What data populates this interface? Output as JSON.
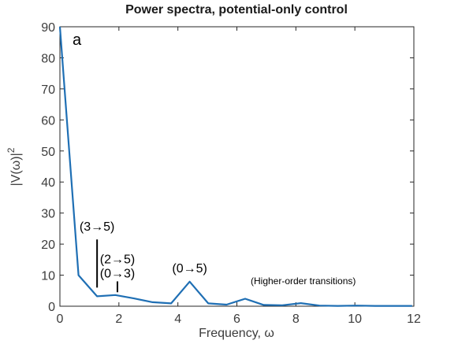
{
  "chart_data": {
    "type": "line",
    "title": "Power spectra, potential-only control",
    "panel_label": "a",
    "xlabel": "Frequency, ω",
    "ylabel_base": "|V(ω)|",
    "ylabel_sup": "2",
    "xlim": [
      0,
      12
    ],
    "ylim": [
      0,
      90
    ],
    "xticks": [
      0,
      2,
      4,
      6,
      8,
      10,
      12
    ],
    "yticks": [
      0,
      10,
      20,
      30,
      40,
      50,
      60,
      70,
      80,
      90
    ],
    "grid": false,
    "line_color": "#1f6fb4",
    "series": [
      {
        "x": [
          0,
          0.63,
          1.26,
          1.88,
          2.51,
          3.14,
          3.77,
          4.4,
          5.03,
          5.65,
          6.28,
          6.91,
          7.54,
          8.17,
          8.8,
          9.42,
          10.05,
          10.68,
          11.31,
          11.94
        ],
        "y": [
          90,
          10.0,
          3.2,
          3.6,
          2.5,
          1.3,
          0.9,
          7.9,
          0.9,
          0.5,
          2.4,
          0.4,
          0.3,
          1.0,
          0.2,
          0.1,
          0.2,
          0.1,
          0.1,
          0.1
        ]
      }
    ],
    "annotations": [
      {
        "text": "(3→5)",
        "x": 1.26,
        "y": 24.3,
        "marker_x": 1.26,
        "marker_y1": 6.0,
        "marker_y2": 21.5
      },
      {
        "text": "(2→5)",
        "x": 1.95,
        "y": 13.8
      },
      {
        "text": "(0→3)",
        "x": 1.95,
        "y": 9.3,
        "marker_x": 1.95,
        "marker_y1": 4.5,
        "marker_y2": 8.0
      },
      {
        "text": "(0→5)",
        "x": 4.4,
        "y": 10.9
      },
      {
        "text": "(Higher-order transitions)",
        "x": 8.25,
        "y": 7.1,
        "small": true
      }
    ]
  }
}
